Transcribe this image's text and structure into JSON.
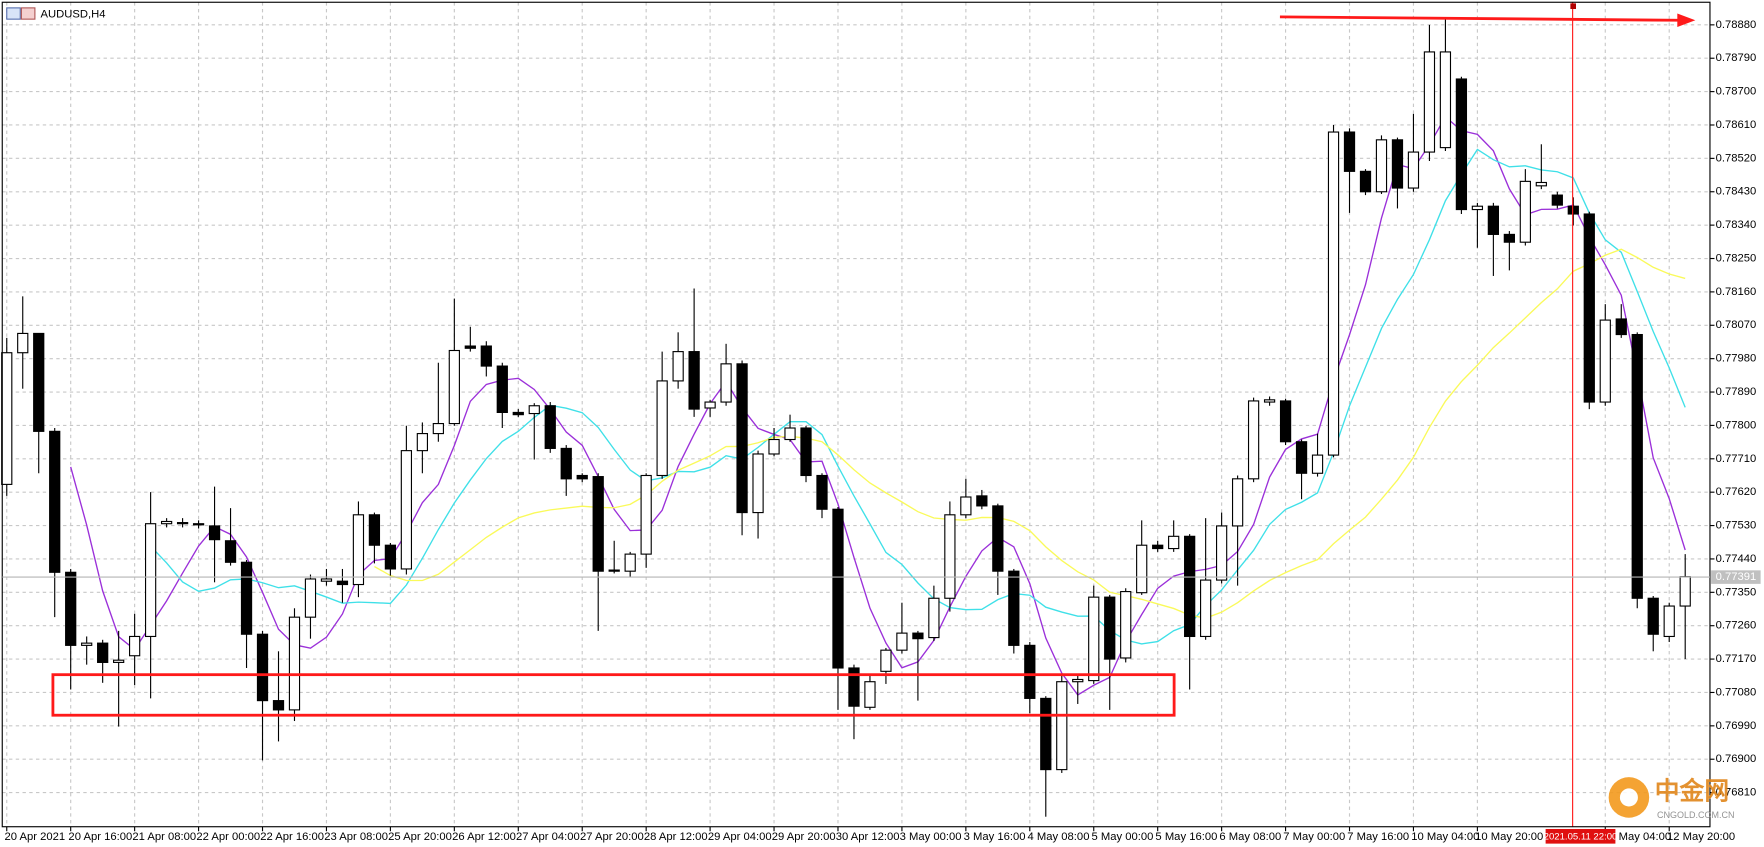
{
  "chart_data": {
    "type": "candlestick",
    "title": "AUDUSD,H4",
    "categories": [
      "20 Apr 2021",
      null,
      null,
      null,
      "20 Apr 16:00",
      null,
      null,
      null,
      "21 Apr 08:00",
      null,
      null,
      null,
      "22 Apr 00:00",
      null,
      null,
      null,
      "22 Apr 16:00",
      null,
      null,
      null,
      "23 Apr 08:00",
      null,
      null,
      null,
      "25 Apr 20:00",
      null,
      null,
      null,
      "26 Apr 12:00",
      null,
      null,
      null,
      "27 Apr 04:00",
      null,
      null,
      null,
      "27 Apr 20:00",
      null,
      null,
      null,
      "28 Apr 12:00",
      null,
      null,
      null,
      "29 Apr 04:00",
      null,
      null,
      null,
      "29 Apr 20:00",
      null,
      null,
      null,
      "30 Apr 12:00",
      null,
      null,
      null,
      "3 May 00:00",
      null,
      null,
      null,
      "3 May 16:00",
      null,
      null,
      null,
      "4 May 08:00",
      null,
      null,
      null,
      "5 May 00:00",
      null,
      null,
      null,
      "5 May 16:00",
      null,
      null,
      null,
      "6 May 08:00",
      null,
      null,
      null,
      "7 May 00:00",
      null,
      null,
      null,
      "7 May 16:00",
      null,
      null,
      null,
      "10 May 04:00",
      null,
      null,
      null,
      "10 May 20:00",
      null,
      null,
      null,
      null,
      null,
      null,
      null,
      "12 May 04:00",
      null,
      null,
      null,
      "12 May 20:00",
      null
    ],
    "open": [
      0.77641,
      0.77996,
      0.78048,
      0.77784,
      0.77404,
      0.77207,
      0.77213,
      0.77161,
      0.77179,
      0.77231,
      0.77535,
      0.77538,
      0.77535,
      0.77529,
      0.77489,
      0.77431,
      0.77237,
      0.77058,
      0.77033,
      0.77283,
      0.7738,
      0.7738,
      0.77371,
      0.77559,
      0.77477,
      0.77413,
      0.77732,
      0.77778,
      0.77805,
      0.78014,
      0.78014,
      0.7796,
      0.77835,
      0.77832,
      0.77853,
      0.77738,
      0.77665,
      0.77662,
      0.77407,
      0.77407,
      0.77453,
      0.77665,
      0.7792,
      0.77999,
      0.77847,
      0.77863,
      0.77966,
      0.77565,
      0.77723,
      0.77762,
      0.77793,
      0.77665,
      0.77574,
      0.77146,
      0.7704,
      0.77137,
      0.77194,
      0.7724,
      0.77228,
      0.77334,
      0.77559,
      0.7761,
      0.77583,
      0.77407,
      0.77207,
      0.77064,
      0.76872,
      0.77109,
      0.77112,
      0.77337,
      0.77173,
      0.77349,
      0.77477,
      0.77468,
      0.77501,
      0.77231,
      0.77383,
      0.77529,
      0.77656,
      0.77863,
      0.77866,
      0.77756,
      0.77671,
      0.7772,
      0.78591,
      0.78485,
      0.7843,
      0.7857,
      0.7844,
      0.78537,
      0.78549,
      0.78734,
      0.78382,
      0.78391,
      0.78315,
      0.78294,
      0.78446,
      0.78421,
      0.78391,
      0.7837,
      0.77863,
      0.78087,
      0.78045,
      0.77334,
      0.77231,
      0.77313
    ],
    "high": [
      0.78036,
      0.78148,
      0.78048,
      0.77793,
      0.77413,
      0.77231,
      0.77222,
      0.77246,
      0.77292,
      0.7762,
      0.7755,
      0.7755,
      0.77544,
      0.77635,
      0.77577,
      0.77437,
      0.77246,
      0.77191,
      0.77307,
      0.77398,
      0.77413,
      0.77413,
      0.77595,
      0.77565,
      0.77483,
      0.77799,
      0.77808,
      0.77969,
      0.78142,
      0.78066,
      0.78027,
      0.77969,
      0.77844,
      0.7786,
      0.77863,
      0.77747,
      0.77671,
      0.77671,
      0.77489,
      0.77459,
      0.77671,
      0.77999,
      0.78051,
      0.78169,
      0.77869,
      0.7802,
      0.77975,
      0.77732,
      0.77793,
      0.77829,
      0.77799,
      0.77671,
      0.7758,
      0.77155,
      0.77125,
      0.772,
      0.77322,
      0.77246,
      0.77368,
      0.77595,
      0.77656,
      0.77626,
      0.77589,
      0.77413,
      0.77216,
      0.7707,
      0.77131,
      0.77131,
      0.77368,
      0.77343,
      0.77361,
      0.77544,
      0.77489,
      0.77544,
      0.77507,
      0.7755,
      0.77565,
      0.77665,
      0.77875,
      0.77878,
      0.77872,
      0.77762,
      0.77778,
      0.7861,
      0.78601,
      0.78491,
      0.78582,
      0.78576,
      0.7864,
      0.7888,
      0.78895,
      0.7874,
      0.784,
      0.784,
      0.78324,
      0.78491,
      0.78558,
      0.7843,
      0.78415,
      0.78376,
      0.78127,
      0.78127,
      0.78051,
      0.7734,
      0.77322,
      0.77453
    ],
    "low": [
      0.7761,
      0.77899,
      0.77671,
      0.77283,
      0.77088,
      0.77155,
      0.77106,
      0.76988,
      0.771,
      0.77064,
      0.77525,
      0.77525,
      0.77522,
      0.77377,
      0.77422,
      0.77146,
      0.76897,
      0.76948,
      0.77003,
      0.77225,
      0.77368,
      0.77322,
      0.77337,
      0.77428,
      0.77395,
      0.77398,
      0.77671,
      0.77756,
      0.77799,
      0.77999,
      0.77932,
      0.77793,
      0.77823,
      0.77708,
      0.77726,
      0.7761,
      0.77647,
      0.77246,
      0.77401,
      0.77392,
      0.77416,
      0.77656,
      0.77899,
      0.77823,
      0.77823,
      0.77853,
      0.77504,
      0.77495,
      0.77717,
      0.77756,
      0.77647,
      0.7755,
      0.77033,
      0.76954,
      0.77033,
      0.77103,
      0.77185,
      0.77058,
      0.77219,
      0.77298,
      0.7755,
      0.77574,
      0.77343,
      0.77185,
      0.77024,
      0.76745,
      0.76863,
      0.77049,
      0.77103,
      0.77033,
      0.77161,
      0.77343,
      0.77459,
      0.77459,
      0.77088,
      0.77222,
      0.77374,
      0.77368,
      0.77647,
      0.77853,
      0.77747,
      0.77601,
      0.77662,
      0.77714,
      0.78373,
      0.78421,
      0.78424,
      0.78385,
      0.7843,
      0.78513,
      0.7854,
      0.7837,
      0.78279,
      0.78203,
      0.78218,
      0.78285,
      0.78437,
      0.78385,
      0.78339,
      0.77844,
      0.77853,
      0.78036,
      0.77307,
      0.77191,
      0.77216,
      0.7717
    ],
    "close": [
      0.77996,
      0.78048,
      0.77784,
      0.77404,
      0.77207,
      0.77213,
      0.77161,
      0.77167,
      0.77231,
      0.77535,
      0.77541,
      0.77535,
      0.77532,
      0.77492,
      0.77431,
      0.77237,
      0.77058,
      0.77033,
      0.77283,
      0.77386,
      0.77386,
      0.77371,
      0.77559,
      0.77477,
      0.77413,
      0.77732,
      0.77778,
      0.77805,
      0.78002,
      0.78008,
      0.7796,
      0.77835,
      0.77829,
      0.77853,
      0.77738,
      0.77656,
      0.77656,
      0.77407,
      0.7741,
      0.77453,
      0.77665,
      0.7792,
      0.77999,
      0.77844,
      0.77863,
      0.77966,
      0.77565,
      0.77723,
      0.77762,
      0.77793,
      0.77665,
      0.77574,
      0.77146,
      0.77043,
      0.77109,
      0.77194,
      0.7724,
      0.77225,
      0.77334,
      0.77559,
      0.77607,
      0.77583,
      0.77407,
      0.77207,
      0.77064,
      0.76872,
      0.77109,
      0.77115,
      0.77337,
      0.7717,
      0.77352,
      0.77477,
      0.77468,
      0.77501,
      0.77231,
      0.77383,
      0.77529,
      0.77656,
      0.77866,
      0.77869,
      0.77756,
      0.77671,
      0.7772,
      0.78591,
      0.78485,
      0.7843,
      0.7857,
      0.7844,
      0.78537,
      0.78807,
      0.78807,
      0.78382,
      0.78391,
      0.78315,
      0.78294,
      0.78458,
      0.78455,
      0.78394,
      0.7837,
      0.77863,
      0.78084,
      0.78045,
      0.77334,
      0.77237,
      0.77313,
      0.77392
    ],
    "up_color": "#ffffff",
    "down_color": "#000000",
    "indicators": [
      {
        "period": 5,
        "color": "#9b30d9"
      },
      {
        "period": 10,
        "color": "#3fe0e8"
      },
      {
        "period": 24,
        "color": "#fafa5a"
      }
    ],
    "ylim": [
      0.76718,
      0.78947
    ],
    "yticks": [
      {
        "value": 0.7888,
        "label": "0.78880"
      },
      {
        "value": 0.7879,
        "label": "0.78790"
      },
      {
        "value": 0.787,
        "label": "0.78700"
      },
      {
        "value": 0.7861,
        "label": "0.78610"
      },
      {
        "value": 0.7852,
        "label": "0.78520"
      },
      {
        "value": 0.7843,
        "label": "0.78430"
      },
      {
        "value": 0.7834,
        "label": "0.78340"
      },
      {
        "value": 0.7825,
        "label": "0.78250"
      },
      {
        "value": 0.7816,
        "label": "0.78160"
      },
      {
        "value": 0.7807,
        "label": "0.78070"
      },
      {
        "value": 0.7798,
        "label": "0.77980"
      },
      {
        "value": 0.7789,
        "label": "0.77890"
      },
      {
        "value": 0.778,
        "label": "0.77800"
      },
      {
        "value": 0.7771,
        "label": "0.77710"
      },
      {
        "value": 0.7762,
        "label": "0.77620"
      },
      {
        "value": 0.7753,
        "label": "0.77530"
      },
      {
        "value": 0.7744,
        "label": "0.77440"
      },
      {
        "value": 0.7735,
        "label": "0.77350"
      },
      {
        "value": 0.7726,
        "label": "0.77260"
      },
      {
        "value": 0.7717,
        "label": "0.77170"
      },
      {
        "value": 0.7708,
        "label": "0.77080"
      },
      {
        "value": 0.7699,
        "label": "0.76990"
      },
      {
        "value": 0.769,
        "label": "0.76900"
      },
      {
        "value": 0.7681,
        "label": "0.76810"
      }
    ],
    "grid": true,
    "last_price": 0.77391,
    "cursor_label": "2021.05.11 22:00",
    "watermark": {
      "name": "中金网",
      "site": "CNGOLD.COM.CN"
    }
  }
}
